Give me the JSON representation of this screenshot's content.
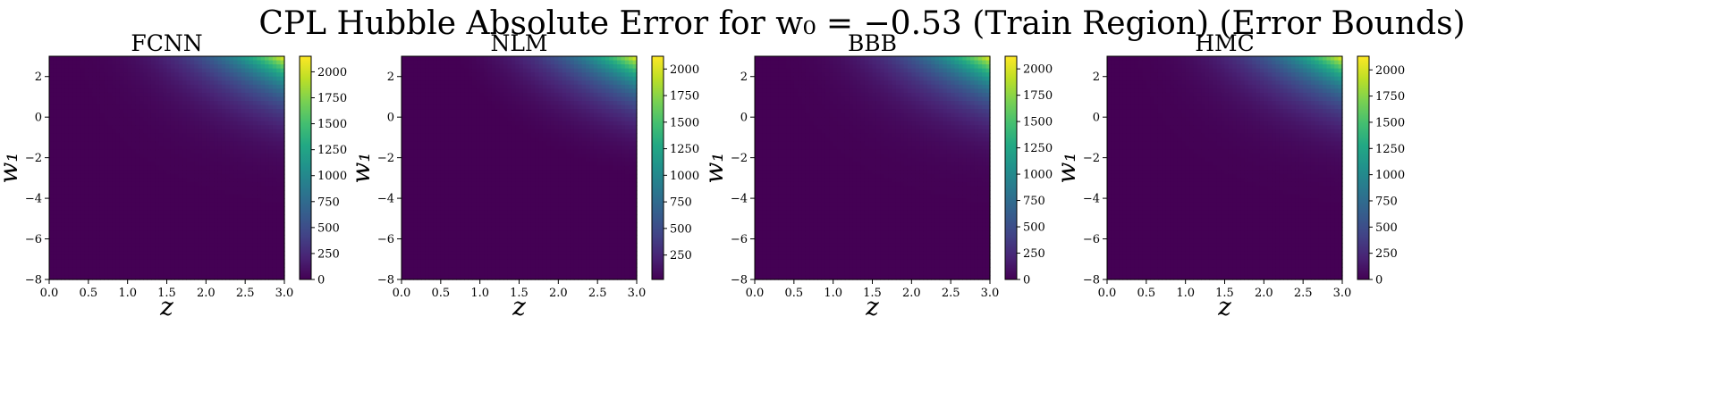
{
  "figure": {
    "title": "CPL Hubble Absolute Error for w₀ = −0.53 (Train Region) (Error Bounds)"
  },
  "colormap": {
    "name": "viridis",
    "stops": [
      "#440154",
      "#482475",
      "#414487",
      "#355f8d",
      "#2a788e",
      "#21918c",
      "#22a884",
      "#44bf70",
      "#7ad151",
      "#bddf26",
      "#fde725"
    ]
  },
  "chart_data": [
    {
      "type": "heatmap",
      "title": "FCNN",
      "xlabel": "z",
      "ylabel": "w₁",
      "xlim": [
        0.0,
        3.0
      ],
      "ylim": [
        -8,
        3
      ],
      "xticks": [
        "0.0",
        "0.5",
        "1.0",
        "1.5",
        "2.0",
        "2.5",
        "3.0"
      ],
      "xtick_values": [
        0.0,
        0.5,
        1.0,
        1.5,
        2.0,
        2.5,
        3.0
      ],
      "yticks": [
        "−8",
        "−6",
        "−4",
        "−2",
        "0",
        "2"
      ],
      "ytick_values": [
        -8,
        -6,
        -4,
        -2,
        0,
        2
      ],
      "colorbar": {
        "range": [
          0,
          2150
        ],
        "ticks": [
          "0",
          "250",
          "500",
          "750",
          "1000",
          "1250",
          "1500",
          "1750",
          "2000"
        ],
        "tick_values": [
          0,
          250,
          500,
          750,
          1000,
          1250,
          1500,
          1750,
          2000
        ]
      },
      "max_error": 2150
    },
    {
      "type": "heatmap",
      "title": "NLM",
      "xlabel": "z",
      "ylabel": "w₁",
      "xlim": [
        0.0,
        3.0
      ],
      "ylim": [
        -8,
        3
      ],
      "xticks": [
        "0.0",
        "0.5",
        "1.0",
        "1.5",
        "2.0",
        "2.5",
        "3.0"
      ],
      "xtick_values": [
        0.0,
        0.5,
        1.0,
        1.5,
        2.0,
        2.5,
        3.0
      ],
      "yticks": [
        "−8",
        "−6",
        "−4",
        "−2",
        "0",
        "2"
      ],
      "ytick_values": [
        -8,
        -6,
        -4,
        -2,
        0,
        2
      ],
      "colorbar": {
        "range": [
          20,
          2120
        ],
        "ticks": [
          "250",
          "500",
          "750",
          "1000",
          "1250",
          "1500",
          "1750",
          "2000"
        ],
        "tick_values": [
          250,
          500,
          750,
          1000,
          1250,
          1500,
          1750,
          2000
        ]
      },
      "max_error": 2120
    },
    {
      "type": "heatmap",
      "title": "BBB",
      "xlabel": "z",
      "ylabel": "w₁",
      "xlim": [
        0.0,
        3.0
      ],
      "ylim": [
        -8,
        3
      ],
      "xticks": [
        "0.0",
        "0.5",
        "1.0",
        "1.5",
        "2.0",
        "2.5",
        "3.0"
      ],
      "xtick_values": [
        0.0,
        0.5,
        1.0,
        1.5,
        2.0,
        2.5,
        3.0
      ],
      "yticks": [
        "−8",
        "−6",
        "−4",
        "−2",
        "0",
        "2"
      ],
      "ytick_values": [
        -8,
        -6,
        -4,
        -2,
        0,
        2
      ],
      "colorbar": {
        "range": [
          0,
          2120
        ],
        "ticks": [
          "0",
          "250",
          "500",
          "750",
          "1000",
          "1250",
          "1500",
          "1750",
          "2000"
        ],
        "tick_values": [
          0,
          250,
          500,
          750,
          1000,
          1250,
          1500,
          1750,
          2000
        ]
      },
      "max_error": 2120
    },
    {
      "type": "heatmap",
      "title": "HMC",
      "xlabel": "z",
      "ylabel": "w₁",
      "xlim": [
        0.0,
        3.0
      ],
      "ylim": [
        -8,
        3
      ],
      "xticks": [
        "0.0",
        "0.5",
        "1.0",
        "1.5",
        "2.0",
        "2.5",
        "3.0"
      ],
      "xtick_values": [
        0.0,
        0.5,
        1.0,
        1.5,
        2.0,
        2.5,
        3.0
      ],
      "yticks": [
        "−8",
        "−6",
        "−4",
        "−2",
        "0",
        "2"
      ],
      "ytick_values": [
        -8,
        -6,
        -4,
        -2,
        0,
        2
      ],
      "colorbar": {
        "range": [
          0,
          2130
        ],
        "ticks": [
          "0",
          "250",
          "500",
          "750",
          "1000",
          "1250",
          "1500",
          "1750",
          "2000"
        ],
        "tick_values": [
          0,
          250,
          500,
          750,
          1000,
          1250,
          1500,
          1750,
          2000
        ]
      },
      "max_error": 2130
    }
  ]
}
